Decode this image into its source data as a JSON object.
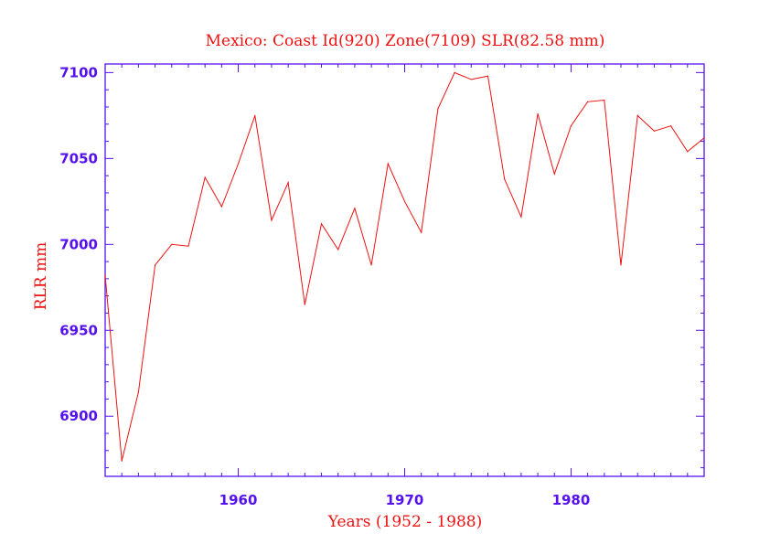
{
  "chart_data": {
    "type": "line",
    "title": "Mexico: Coast Id(920) Zone(7109) SLR(82.58 mm)",
    "xlabel": "Years (1952 - 1988)",
    "ylabel": "RLR mm",
    "xlim": [
      1952,
      1988
    ],
    "ylim": [
      6865,
      7105
    ],
    "xticks": [
      1960,
      1970,
      1980
    ],
    "yticks": [
      6900,
      6950,
      7000,
      7050,
      7100
    ],
    "x_minor_step": 1,
    "y_minor_step": 10,
    "grid": false,
    "colors": {
      "axis": "#5511ee",
      "line": "#ee1111",
      "text": "#ee1111"
    },
    "series": [
      {
        "x": [
          1952,
          1953,
          1954,
          1955,
          1956,
          1957,
          1958,
          1959,
          1960,
          1961,
          1962,
          1963,
          1964,
          1965,
          1966,
          1967,
          1968,
          1969,
          1970,
          1971,
          1972,
          1973,
          1974,
          1975,
          1976,
          1977,
          1978,
          1979,
          1980,
          1981,
          1982,
          1983,
          1984,
          1985,
          1986,
          1987,
          1988
        ],
        "y": [
          6982,
          6874,
          6914,
          6988,
          7000,
          6999,
          7039,
          7022,
          7047,
          7075,
          7014,
          7036,
          6965,
          7012,
          6997,
          7021,
          6988,
          7047,
          7025,
          7007,
          7079,
          7100,
          7096,
          7098,
          7038,
          7016,
          7076,
          7041,
          7069,
          7083,
          7084,
          6988,
          7075,
          7066,
          7069,
          7054,
          7062
        ]
      }
    ]
  }
}
